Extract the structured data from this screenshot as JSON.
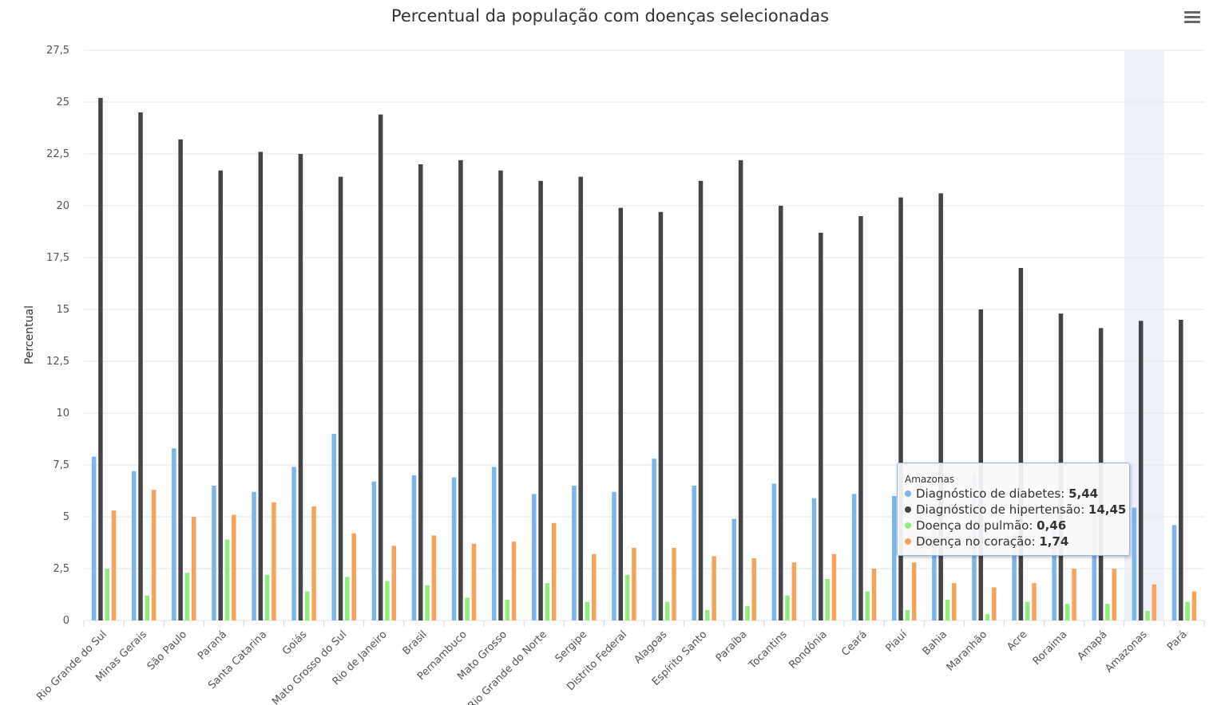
{
  "chart_data": {
    "type": "bar",
    "title": "Percentual da população com doenças selecionadas",
    "ylabel": "Percentual",
    "ylim": [
      0,
      27.5
    ],
    "yticks": [
      "0",
      "2,5",
      "5",
      "7,5",
      "10",
      "12,5",
      "15",
      "17,5",
      "20",
      "22,5",
      "25",
      "27,5"
    ],
    "grid": true,
    "categories": [
      "Rio Grande do Sul",
      "Minas Gerais",
      "São Paulo",
      "Paraná",
      "Santa Catarina",
      "Goiás",
      "Mato Grosso do Sul",
      "Rio de Janeiro",
      "Brasil",
      "Pernambuco",
      "Mato Grosso",
      "Rio Grande do Norte",
      "Sergipe",
      "Distrito Federal",
      "Alagoas",
      "Espírito Santo",
      "Paraíba",
      "Tocantins",
      "Rondônia",
      "Ceará",
      "Piauí",
      "Bahia",
      "Maranhão",
      "Acre",
      "Roraima",
      "Amapá",
      "Amazonas",
      "Pará"
    ],
    "series": [
      {
        "name": "Diagnóstico de diabetes",
        "color": "#7cb5ec",
        "values": [
          7.9,
          7.2,
          8.3,
          6.5,
          6.2,
          7.4,
          9.0,
          6.7,
          7.0,
          6.9,
          7.4,
          6.1,
          6.5,
          6.2,
          7.8,
          6.5,
          4.9,
          6.6,
          5.9,
          6.1,
          6.0,
          4.4,
          7.1,
          4.2,
          4.5,
          5.6,
          5.44,
          4.6
        ]
      },
      {
        "name": "Diagnóstico de hipertensão",
        "color": "#434348",
        "values": [
          25.2,
          24.5,
          23.2,
          21.7,
          22.6,
          22.5,
          21.4,
          24.4,
          22.0,
          22.2,
          21.7,
          21.2,
          21.4,
          19.9,
          19.7,
          21.2,
          22.2,
          20.0,
          18.7,
          19.5,
          20.4,
          20.6,
          15.0,
          17.0,
          14.8,
          14.1,
          14.45,
          14.5
        ]
      },
      {
        "name": "Doença do pulmão",
        "color": "#90ed7d",
        "values": [
          2.5,
          1.2,
          2.3,
          3.9,
          2.2,
          1.4,
          2.1,
          1.9,
          1.7,
          1.1,
          1.0,
          1.8,
          0.9,
          2.2,
          0.9,
          0.5,
          0.7,
          1.2,
          2.0,
          1.4,
          0.5,
          1.0,
          0.3,
          0.9,
          0.8,
          0.8,
          0.46,
          0.9
        ]
      },
      {
        "name": "Doença no coração",
        "color": "#f7a35c",
        "values": [
          5.3,
          6.3,
          5.0,
          5.1,
          5.7,
          5.5,
          4.2,
          3.6,
          4.1,
          3.7,
          3.8,
          4.7,
          3.2,
          3.5,
          3.5,
          3.1,
          3.0,
          2.8,
          3.2,
          2.5,
          2.8,
          1.8,
          1.6,
          1.8,
          2.5,
          2.5,
          1.74,
          1.4
        ]
      }
    ],
    "highlighted_category": "Amazonas"
  },
  "tooltip": {
    "header": "Amazonas",
    "rows": [
      {
        "label": "Diagnóstico de diabetes: ",
        "value": "5,44",
        "color": "#7cb5ec"
      },
      {
        "label": "Diagnóstico de hipertensão: ",
        "value": "14,45",
        "color": "#434348"
      },
      {
        "label": "Doença do pulmão: ",
        "value": "0,46",
        "color": "#90ed7d"
      },
      {
        "label": "Doença no coração: ",
        "value": "1,74",
        "color": "#f7a35c"
      }
    ]
  },
  "menu": {
    "icon": "hamburger-menu-icon"
  }
}
